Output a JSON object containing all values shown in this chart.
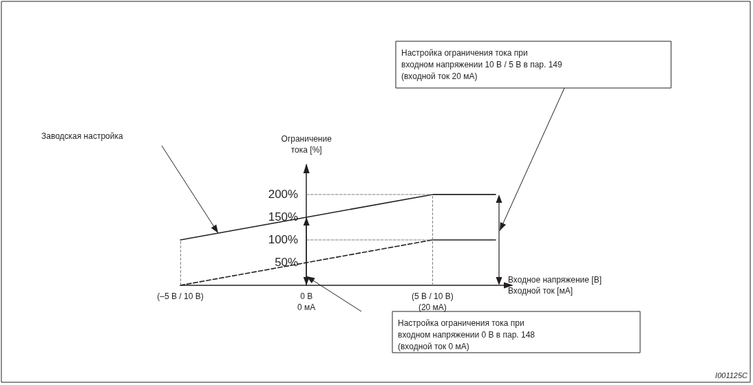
{
  "chart_data": {
    "type": "line",
    "ylabel": "Ограничение\nтока [%]",
    "xlabel": "Входное напряжение [В]\nВходной ток [мА]",
    "categories": [
      "(–5 В / 10 В)",
      null,
      "0 В\n0 мА",
      null,
      "(5 В / 10 В)\n(20 мА)",
      null
    ],
    "ylim": [
      0,
      265
    ],
    "yticks": [
      {
        "value": 50,
        "label": "50%"
      },
      {
        "value": 100,
        "label": "100%"
      },
      {
        "value": 150,
        "label": "150%"
      },
      {
        "value": 200,
        "label": "200%"
      }
    ],
    "series": [
      {
        "color": "#231f20",
        "line_style": "solid",
        "values": [
          100,
          null,
          150,
          null,
          200,
          200
        ]
      },
      {
        "color": "#231f20",
        "line_style": "dashed",
        "values": [
          0,
          null,
          50,
          null,
          100,
          null
        ]
      },
      {
        "color": "#231f20",
        "line_style": "solid",
        "values": [
          null,
          null,
          null,
          null,
          100,
          100
        ]
      },
      {
        "color": "#808080",
        "line_style": "dashed",
        "values": [
          null,
          null,
          200,
          null,
          200,
          null
        ]
      },
      {
        "color": "#808080",
        "line_style": "dashed",
        "values": [
          null,
          null,
          100,
          null,
          100,
          null
        ]
      }
    ],
    "ref_lines": [
      {
        "axis": "x",
        "value": "(5 В / 10 В)\n(20 мА)",
        "color": "#808080",
        "line_style": "dashed"
      },
      {
        "axis": "x",
        "value": "(–5 В / 10 В)",
        "color": "#808080",
        "line_style": "dashed"
      }
    ],
    "annotations": [
      "Заводская настройка",
      "Настройка ограничения тока при входном напряжении 10 В / 5 В в пар. 149 (входной ток 20 мА)",
      "Настройка ограничения тока при входном напряжении 0 В в пар. 148 (входной ток 0 мА)",
      "I001125C"
    ],
    "marker": "none",
    "grid": false
  }
}
